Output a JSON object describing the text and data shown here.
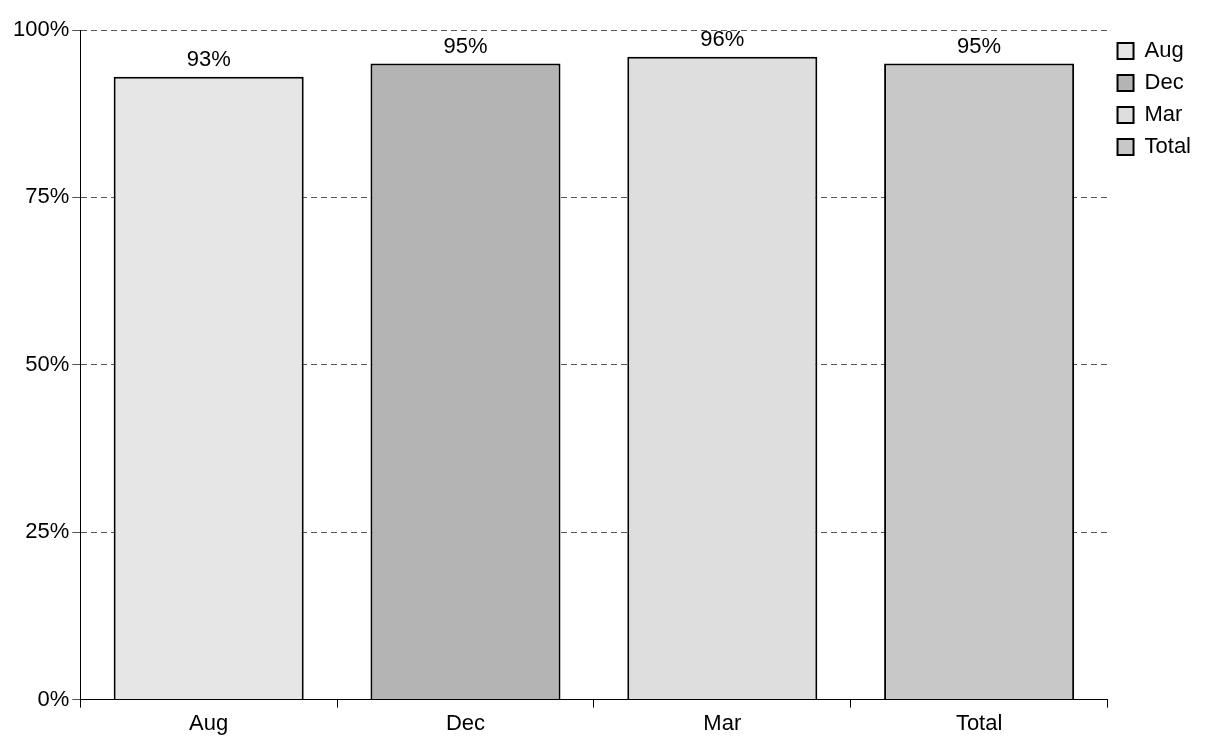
{
  "chart_data": {
    "type": "bar",
    "categories": [
      "Aug",
      "Dec",
      "Mar",
      "Total"
    ],
    "series": [
      {
        "name": "Aug",
        "color": "#e6e6e6",
        "values": [
          93,
          null,
          null,
          null
        ],
        "value_labels": [
          "93%",
          null,
          null,
          null
        ]
      },
      {
        "name": "Dec",
        "color": "#b4b4b4",
        "values": [
          null,
          95,
          null,
          null
        ],
        "value_labels": [
          null,
          "95%",
          null,
          null
        ]
      },
      {
        "name": "Mar",
        "color": "#dedede",
        "values": [
          null,
          null,
          96,
          null
        ],
        "value_labels": [
          null,
          null,
          "96%",
          null
        ]
      },
      {
        "name": "Total",
        "color": "#c8c8c8",
        "values": [
          null,
          null,
          null,
          95
        ],
        "value_labels": [
          null,
          null,
          null,
          "95%"
        ]
      }
    ],
    "ylim": [
      0,
      100
    ],
    "yticks": [
      {
        "value": 0,
        "label": "0%"
      },
      {
        "value": 25,
        "label": "25%"
      },
      {
        "value": 50,
        "label": "50%"
      },
      {
        "value": 75,
        "label": "75%"
      },
      {
        "value": 100,
        "label": "100%"
      }
    ],
    "grid": "y",
    "legend": "right"
  }
}
